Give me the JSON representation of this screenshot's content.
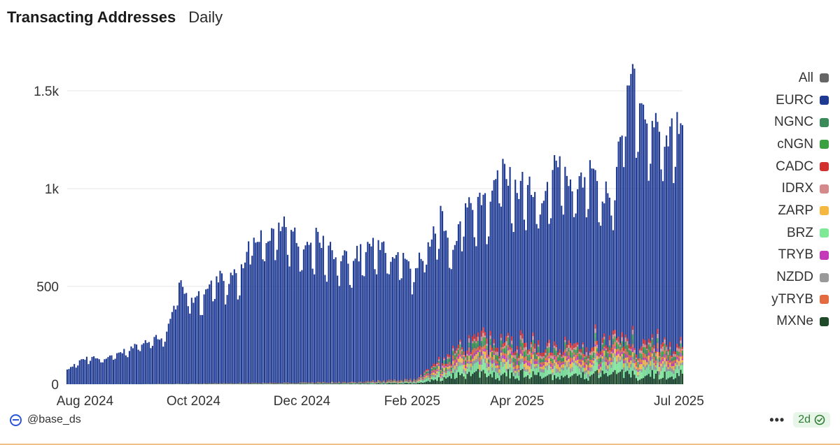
{
  "header": {
    "title": "Transacting Addresses",
    "subtitle": "Daily"
  },
  "footer": {
    "author": "@base_ds",
    "more": "•••",
    "badge": "2d"
  },
  "colors": {
    "All": "#666666",
    "EURC": "#1f3a93",
    "NGNC": "#3a8a5a",
    "cNGN": "#3aa040",
    "CADC": "#d33030",
    "IDRX": "#d48a8a",
    "ZARP": "#f5b942",
    "BRZ": "#7de896",
    "TRYB": "#c43ab8",
    "NZDD": "#999999",
    "yTRYB": "#e46a40",
    "MXNe": "#1f4a2a"
  },
  "chart_data": {
    "type": "bar",
    "stacked": true,
    "x_range": [
      "2024-07-22",
      "2025-07-03"
    ],
    "ylim": [
      0,
      1700
    ],
    "yticks": [
      0,
      500,
      1000,
      1500
    ],
    "ytick_labels": [
      "0",
      "500",
      "1k",
      "1.5k"
    ],
    "xticks": [
      "2024-08-01",
      "2024-10-01",
      "2024-12-01",
      "2025-02-01",
      "2025-04-01",
      "2025-07-01"
    ],
    "xtick_labels": [
      "Aug 2024",
      "Oct 2024",
      "Dec 2024",
      "Feb 2025",
      "Apr 2025",
      "Jul 2025"
    ],
    "grid": true,
    "legend_position": "right",
    "series": [
      {
        "name": "All"
      },
      {
        "name": "EURC"
      },
      {
        "name": "NGNC"
      },
      {
        "name": "cNGN"
      },
      {
        "name": "CADC"
      },
      {
        "name": "IDRX"
      },
      {
        "name": "ZARP"
      },
      {
        "name": "BRZ"
      },
      {
        "name": "TRYB"
      },
      {
        "name": "NZDD"
      },
      {
        "name": "yTRYB"
      },
      {
        "name": "MXNe"
      }
    ],
    "eurc_weekly_peaks": [
      {
        "x": "2024-07-22",
        "y": 80
      },
      {
        "x": "2024-07-29",
        "y": 130
      },
      {
        "x": "2024-08-05",
        "y": 150
      },
      {
        "x": "2024-08-12",
        "y": 140
      },
      {
        "x": "2024-08-19",
        "y": 170
      },
      {
        "x": "2024-08-26",
        "y": 190
      },
      {
        "x": "2024-09-02",
        "y": 230
      },
      {
        "x": "2024-09-09",
        "y": 250
      },
      {
        "x": "2024-09-16",
        "y": 270
      },
      {
        "x": "2024-09-23",
        "y": 560
      },
      {
        "x": "2024-09-30",
        "y": 460
      },
      {
        "x": "2024-10-07",
        "y": 490
      },
      {
        "x": "2024-10-14",
        "y": 590
      },
      {
        "x": "2024-10-21",
        "y": 560
      },
      {
        "x": "2024-10-28",
        "y": 640
      },
      {
        "x": "2024-11-04",
        "y": 830
      },
      {
        "x": "2024-11-11",
        "y": 760
      },
      {
        "x": "2024-11-18",
        "y": 880
      },
      {
        "x": "2024-11-25",
        "y": 830
      },
      {
        "x": "2024-12-02",
        "y": 730
      },
      {
        "x": "2024-12-09",
        "y": 800
      },
      {
        "x": "2024-12-16",
        "y": 740
      },
      {
        "x": "2024-12-23",
        "y": 700
      },
      {
        "x": "2024-12-30",
        "y": 700
      },
      {
        "x": "2025-01-06",
        "y": 730
      },
      {
        "x": "2025-01-13",
        "y": 790
      },
      {
        "x": "2025-01-20",
        "y": 710
      },
      {
        "x": "2025-01-27",
        "y": 690
      },
      {
        "x": "2025-02-03",
        "y": 640
      },
      {
        "x": "2025-02-10",
        "y": 770
      },
      {
        "x": "2025-02-17",
        "y": 930
      },
      {
        "x": "2025-02-24",
        "y": 780
      },
      {
        "x": "2025-03-03",
        "y": 960
      },
      {
        "x": "2025-03-10",
        "y": 1010
      },
      {
        "x": "2025-03-17",
        "y": 1020
      },
      {
        "x": "2025-03-24",
        "y": 1220
      },
      {
        "x": "2025-03-31",
        "y": 1050
      },
      {
        "x": "2025-04-07",
        "y": 1120
      },
      {
        "x": "2025-04-14",
        "y": 980
      },
      {
        "x": "2025-04-21",
        "y": 1240
      },
      {
        "x": "2025-04-28",
        "y": 1130
      },
      {
        "x": "2025-05-05",
        "y": 1100
      },
      {
        "x": "2025-05-12",
        "y": 1180
      },
      {
        "x": "2025-05-19",
        "y": 1040
      },
      {
        "x": "2025-05-26",
        "y": 1060
      },
      {
        "x": "2025-06-02",
        "y": 1700
      },
      {
        "x": "2025-06-09",
        "y": 1610
      },
      {
        "x": "2025-06-16",
        "y": 1420
      },
      {
        "x": "2025-06-23",
        "y": 1340
      },
      {
        "x": "2025-06-30",
        "y": 1440
      }
    ],
    "other_weekly_peaks": [
      {
        "x": "2024-07-22",
        "y": 0
      },
      {
        "x": "2024-09-30",
        "y": 5
      },
      {
        "x": "2024-12-30",
        "y": 15
      },
      {
        "x": "2025-02-03",
        "y": 30
      },
      {
        "x": "2025-02-17",
        "y": 140
      },
      {
        "x": "2025-03-03",
        "y": 250
      },
      {
        "x": "2025-03-24",
        "y": 290
      },
      {
        "x": "2025-04-21",
        "y": 230
      },
      {
        "x": "2025-05-19",
        "y": 270
      },
      {
        "x": "2025-06-16",
        "y": 290
      },
      {
        "x": "2025-06-30",
        "y": 240
      }
    ]
  }
}
